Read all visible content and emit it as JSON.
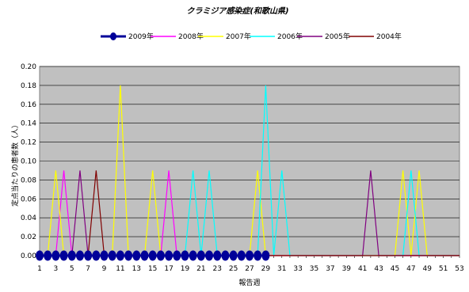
{
  "chart_data": {
    "type": "line",
    "title": "クラミジア感染症(和歌山県)",
    "xlabel": "報告週",
    "ylabel": "定点当たりの患者数（人）",
    "ylim": [
      0,
      0.2
    ],
    "yticks": [
      "0.00",
      "0.02",
      "0.04",
      "0.06",
      "0.08",
      "0.10",
      "0.12",
      "0.14",
      "0.16",
      "0.18",
      "0.20"
    ],
    "xlim": [
      1,
      53
    ],
    "xticks": [
      1,
      3,
      5,
      7,
      9,
      11,
      13,
      15,
      17,
      19,
      21,
      23,
      25,
      27,
      29,
      31,
      33,
      35,
      37,
      39,
      41,
      43,
      45,
      47,
      49,
      51,
      53
    ],
    "grid": true,
    "legend_position": "top",
    "series": [
      {
        "name": "2009年",
        "color": "#000099",
        "marker": true,
        "weeks": [
          1,
          2,
          3,
          4,
          5,
          6,
          7,
          8,
          9,
          10,
          11,
          12,
          13,
          14,
          15,
          16,
          17,
          18,
          19,
          20,
          21,
          22,
          23,
          24,
          25,
          26,
          27,
          28,
          29
        ],
        "values": [
          0,
          0,
          0,
          0,
          0,
          0,
          0,
          0,
          0,
          0,
          0,
          0,
          0,
          0,
          0,
          0,
          0,
          0,
          0,
          0,
          0,
          0,
          0,
          0,
          0,
          0,
          0,
          0,
          0
        ]
      },
      {
        "name": "2008年",
        "color": "#ff00ff",
        "peaks": [
          [
            4,
            0.09
          ],
          [
            17,
            0.09
          ]
        ]
      },
      {
        "name": "2007年",
        "color": "#ffff00",
        "peaks": [
          [
            3,
            0.09
          ],
          [
            11,
            0.18
          ],
          [
            15,
            0.09
          ],
          [
            28,
            0.09
          ],
          [
            46,
            0.09
          ],
          [
            48,
            0.09
          ]
        ]
      },
      {
        "name": "2006年",
        "color": "#00ffff",
        "peaks": [
          [
            20,
            0.09
          ],
          [
            22,
            0.09
          ],
          [
            29,
            0.18
          ],
          [
            31,
            0.09
          ],
          [
            47,
            0.09
          ]
        ]
      },
      {
        "name": "2005年",
        "color": "#800080",
        "peaks": [
          [
            6,
            0.09
          ],
          [
            42,
            0.09
          ]
        ]
      },
      {
        "name": "2004年",
        "color": "#800000",
        "peaks": [
          [
            8,
            0.09
          ]
        ]
      }
    ]
  }
}
